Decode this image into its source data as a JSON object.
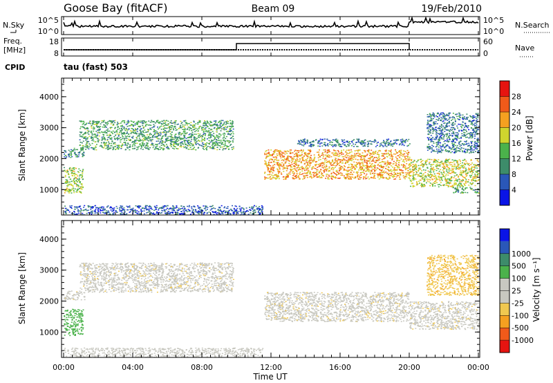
{
  "header": {
    "station": "Goose Bay (fitACF)",
    "beam": "Beam 09",
    "date": "19/Feb/2010"
  },
  "noise_panel": {
    "left_label": "N.Sky",
    "right_label": "N.Search",
    "left_ticks": [
      "10^5",
      "10^0"
    ],
    "right_ticks": [
      "10^5",
      "10^0"
    ]
  },
  "freq_panel": {
    "left_label_1": "Freq.",
    "left_label_2": "[MHz]",
    "right_label": "Nave",
    "left_ticks": [
      "18",
      "8"
    ],
    "right_ticks": [
      "60",
      "0"
    ]
  },
  "cpid": {
    "label": "CPID",
    "program": "tau (fast) 503"
  },
  "chart_data": [
    {
      "type": "heatmap",
      "panel": "power",
      "ylabel": "Slant Range [km]",
      "ylim": [
        180,
        4600
      ],
      "yticks": [
        1000,
        2000,
        3000,
        4000
      ],
      "xlim_hours": [
        0,
        24
      ],
      "colorbar_label": "Power [dB]",
      "colorbar_ticks": [
        "4",
        "8",
        "12",
        "16",
        "20",
        "24",
        "28"
      ],
      "colors": [
        "#0a14e6",
        "#2a57b8",
        "#3d8c6a",
        "#4bb24b",
        "#cfd52e",
        "#f5a020",
        "#f05a1a",
        "#e61410"
      ],
      "echo_bands": [
        {
          "t": [
            0.0,
            1.2
          ],
          "range_km": [
            2050,
            2350
          ],
          "power_db": 10
        },
        {
          "t": [
            0.9,
            9.8
          ],
          "range_km": [
            2300,
            3250
          ],
          "power_db": 12
        },
        {
          "t": [
            0.0,
            1.1
          ],
          "range_km": [
            900,
            1750
          ],
          "power_db": 16
        },
        {
          "t": [
            11.6,
            20.0
          ],
          "range_km": [
            1350,
            2300
          ],
          "power_db": 22
        },
        {
          "t": [
            13.5,
            20.0
          ],
          "range_km": [
            2400,
            2650
          ],
          "power_db": 8
        },
        {
          "t": [
            20.0,
            24.0
          ],
          "range_km": [
            1100,
            2000
          ],
          "power_db": 18
        },
        {
          "t": [
            21.0,
            24.0
          ],
          "range_km": [
            2200,
            3500
          ],
          "power_db": 8
        },
        {
          "t": [
            22.5,
            24.0
          ],
          "range_km": [
            900,
            1100
          ],
          "power_db": 12
        },
        {
          "t": [
            0.0,
            11.5
          ],
          "range_km": [
            200,
            500
          ],
          "power_db": 6
        }
      ]
    },
    {
      "type": "heatmap",
      "panel": "velocity",
      "ylabel": "Slant Range [km]",
      "ylim": [
        180,
        4600
      ],
      "yticks": [
        1000,
        2000,
        3000,
        4000
      ],
      "xlim_hours": [
        0,
        24
      ],
      "xticks": [
        "00:00",
        "04:00",
        "08:00",
        "12:00",
        "16:00",
        "20:00",
        "00:00"
      ],
      "xlabel": "Time UT",
      "colorbar_label": "Velocity [m s⁻¹]",
      "colorbar_ticks": [
        "-1000",
        "-500",
        "-100",
        "-25",
        "25",
        "100",
        "500",
        "1000"
      ],
      "colors": [
        "#e61410",
        "#f05a1a",
        "#f5a020",
        "#f0c850",
        "#c8c8c0",
        "#c8c8c0",
        "#4bb24b",
        "#3d8c6a",
        "#2a57b8",
        "#0a14e6"
      ],
      "echo_bands": [
        {
          "t": [
            0.0,
            1.2
          ],
          "range_km": [
            2050,
            2350
          ],
          "velocity": 0
        },
        {
          "t": [
            0.9,
            9.8
          ],
          "range_km": [
            2300,
            3250
          ],
          "velocity": 0
        },
        {
          "t": [
            0.0,
            1.1
          ],
          "range_km": [
            900,
            1750
          ],
          "velocity": 150
        },
        {
          "t": [
            11.6,
            20.0
          ],
          "range_km": [
            1350,
            2300
          ],
          "velocity": 0
        },
        {
          "t": [
            20.0,
            24.0
          ],
          "range_km": [
            1100,
            2000
          ],
          "velocity": 0
        },
        {
          "t": [
            21.0,
            24.0
          ],
          "range_km": [
            2200,
            3500
          ],
          "velocity": -80
        },
        {
          "t": [
            0.0,
            11.5
          ],
          "range_km": [
            200,
            500
          ],
          "velocity": 50
        }
      ]
    }
  ]
}
